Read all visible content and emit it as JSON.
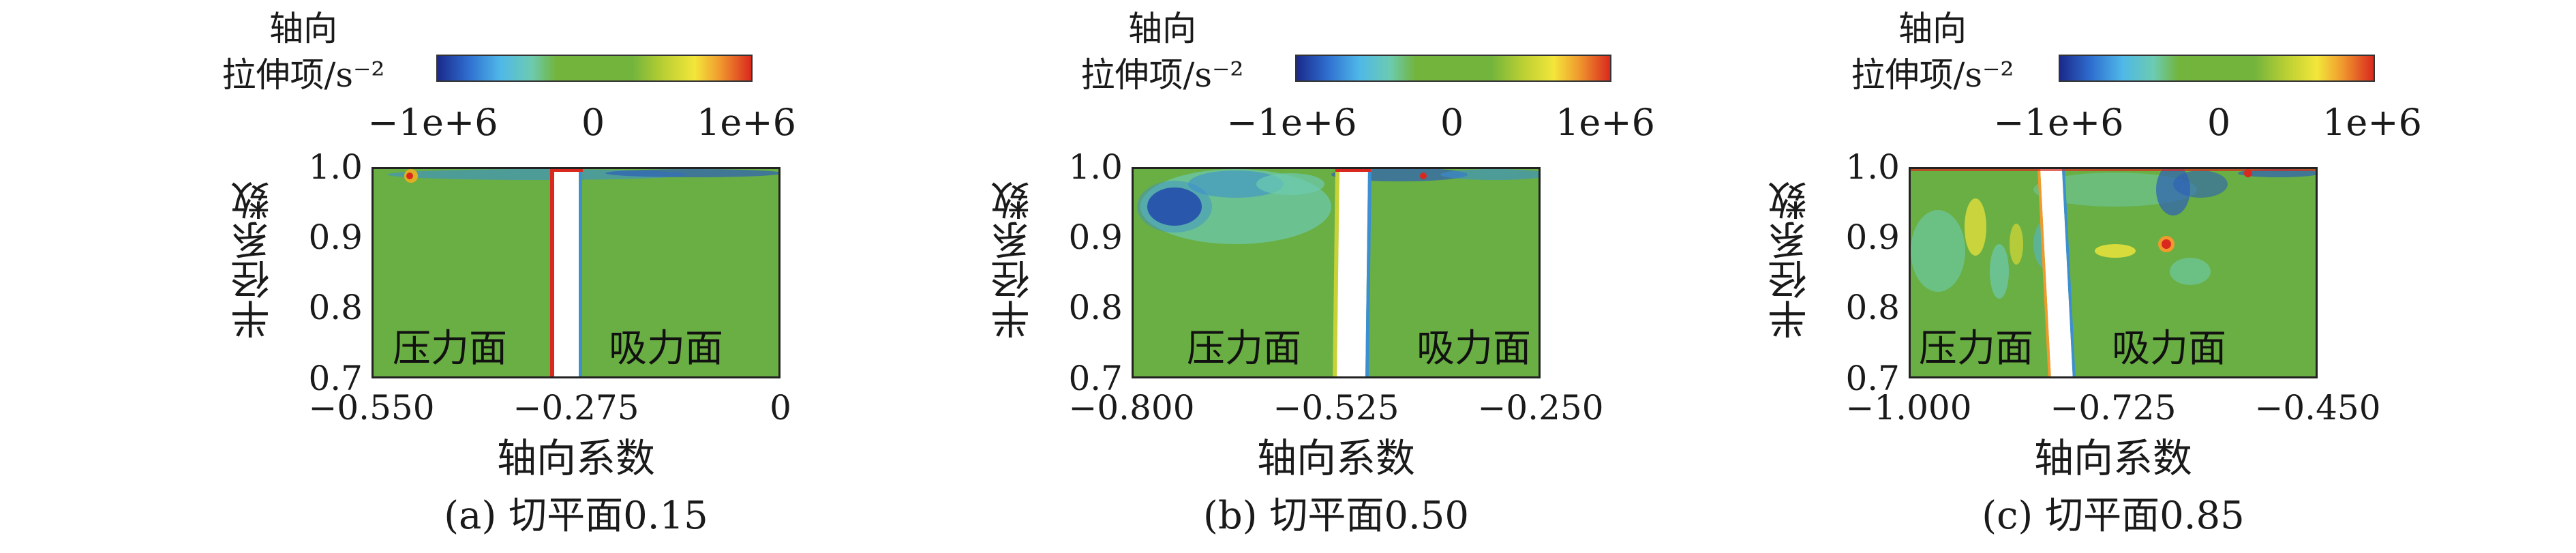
{
  "colorbar": {
    "title_line1": "轴向",
    "title_line2": "拉伸项/s⁻²",
    "tick_min": "−1e+6",
    "tick_mid": "0",
    "tick_max": "1e+6",
    "colors": [
      "#1a2a8c",
      "#4fb8e8",
      "#72b43c",
      "#f3e63a",
      "#d9291e"
    ]
  },
  "chart_data": [
    {
      "type": "heatmap",
      "title": "(a) 切平面0.15",
      "xlabel": "轴向系数",
      "ylabel": "半径系数",
      "xlim": [
        -0.55,
        0
      ],
      "ylim": [
        0.7,
        1.0
      ],
      "x_ticks": [
        "−0.550",
        "−0.275",
        "0"
      ],
      "y_ticks": [
        "1.0",
        "0.9",
        "0.8",
        "0.7"
      ],
      "colorbar_range": [
        -1000000,
        1000000
      ],
      "annotations": [
        "压力面",
        "吸力面"
      ],
      "blade_x": -0.275
    },
    {
      "type": "heatmap",
      "title": "(b) 切平面0.50",
      "xlabel": "轴向系数",
      "ylabel": "半径系数",
      "xlim": [
        -0.8,
        -0.25
      ],
      "ylim": [
        0.7,
        1.0
      ],
      "x_ticks": [
        "−0.800",
        "−0.525",
        "−0.250"
      ],
      "y_ticks": [
        "1.0",
        "0.9",
        "0.8",
        "0.7"
      ],
      "colorbar_range": [
        -1000000,
        1000000
      ],
      "annotations": [
        "压力面",
        "吸力面"
      ],
      "blade_x": -0.53
    },
    {
      "type": "heatmap",
      "title": "(c) 切平面0.85",
      "xlabel": "轴向系数",
      "ylabel": "半径系数",
      "xlim": [
        -1.0,
        -0.45
      ],
      "ylim": [
        0.7,
        1.0
      ],
      "x_ticks": [
        "−1.000",
        "−0.725",
        "−0.450"
      ],
      "y_ticks": [
        "1.0",
        "0.9",
        "0.8",
        "0.7"
      ],
      "colorbar_range": [
        -1000000,
        1000000
      ],
      "annotations": [
        "压力面",
        "吸力面"
      ],
      "blade_x": -0.8
    }
  ]
}
